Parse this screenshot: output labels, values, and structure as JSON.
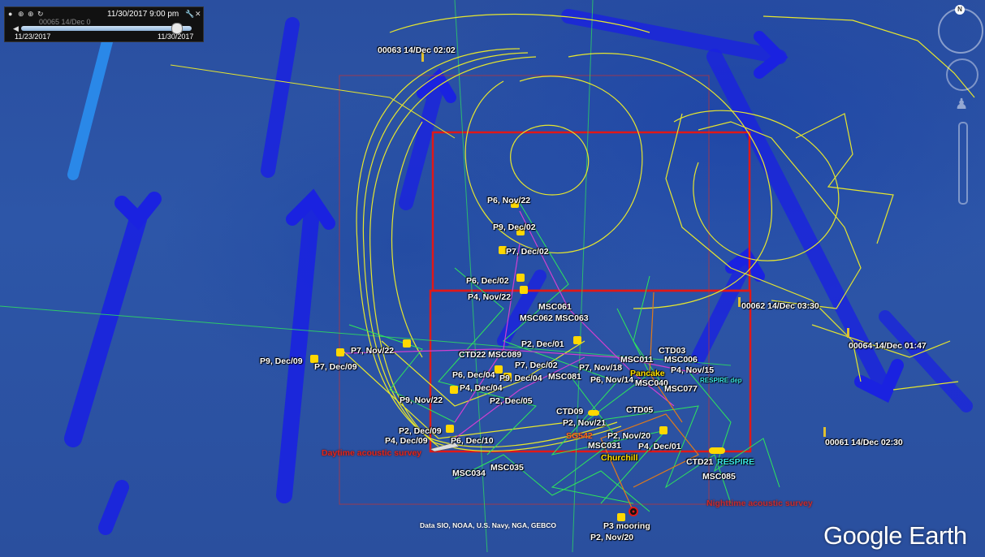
{
  "timebar": {
    "current_time": "11/30/2017  9:00 pm",
    "ghost_text": "00065 14/Dec 0",
    "start_date": "11/23/2017",
    "end_date": "11/30/2017",
    "play_position": 0.95
  },
  "navigation": {
    "north_label": "N"
  },
  "brand": "Google Earth",
  "attribution": "Data SIO, NOAA, U.S. Navy, NGA, GEBCO",
  "labels": {
    "p6_nov22": "P6, Nov/22",
    "p9_dec02": "P9, Dec/02",
    "p7_dec02": "P7, Dec/02",
    "p6_dec02": "P6, Dec/02",
    "p4_nov22": "P4, Nov/22",
    "msc061": "MSC061",
    "msc062_063": "MSC062 MSC063",
    "p2_dec01": "P2, Dec/01",
    "ctd22_msc089": "CTD22 MSC089",
    "p7_dec02b": "P7, Dec/02",
    "p6_dec04": "P6, Dec/04",
    "p9_dec04": "P9, Dec/04",
    "msc081": "MSC081",
    "p4_dec04": "P4, Dec/04",
    "p9_nov22": "P9, Nov/22",
    "p2_dec05": "P2, Dec/05",
    "p9_dec09": "P9, Dec/09",
    "p7_nov22": "P7, Nov/22",
    "p7_dec09": "P7, Dec/09",
    "p2_dec09": "P2, Dec/09",
    "p4_dec09": "P4, Dec/09",
    "p6_dec10": "P6, Dec/10",
    "daytime": "Daytime acoustic survey",
    "msc034": "MSC034",
    "msc035": "MSC035",
    "ctd09": "CTD09",
    "p2_nov21": "P2, Nov/21",
    "sg542": "SG542",
    "p2_nov20": "P2, Nov/20",
    "msc031": "MSC031",
    "churchill": "Churchill",
    "p4_dec01": "P4, Dec/01",
    "ctd05": "CTD05",
    "p7_nov18": "P7, Nov/18",
    "p6_nov14": "P6, Nov/14",
    "msc011": "MSC011",
    "ctd03": "CTD03",
    "msc006": "MSC006",
    "pancake": "Pancake",
    "p4_nov15": "P4, Nov/15",
    "msc040": "MSC040",
    "msc077": "MSC077",
    "respire_dep": "RESPIRE dep",
    "ctd21": "CTD21",
    "respire": "RESPIRE",
    "msc085": "MSC085",
    "nighttime": "Nighttime acoustic survey",
    "p3_mooring": "P3 mooring",
    "p2_nov20b": "P2, Nov/20",
    "d00063": "00063 14/Dec 02:02",
    "d00062": "00062 14/Dec 03:30",
    "d00064": "00064 14/Dec 01:47",
    "d00061": "00061 14/Dec 02:30"
  },
  "colors": {
    "ocean": "#2a4fa0",
    "wind_arrow": "#1a22e0",
    "wind_arrow_light": "#2a8ef0",
    "survey_box": "#e01818",
    "drifter_track": "#e6e62e",
    "glider_track": "#2ee65a",
    "ship_track": "#d040d0",
    "mooring_track": "#e07a1a"
  }
}
